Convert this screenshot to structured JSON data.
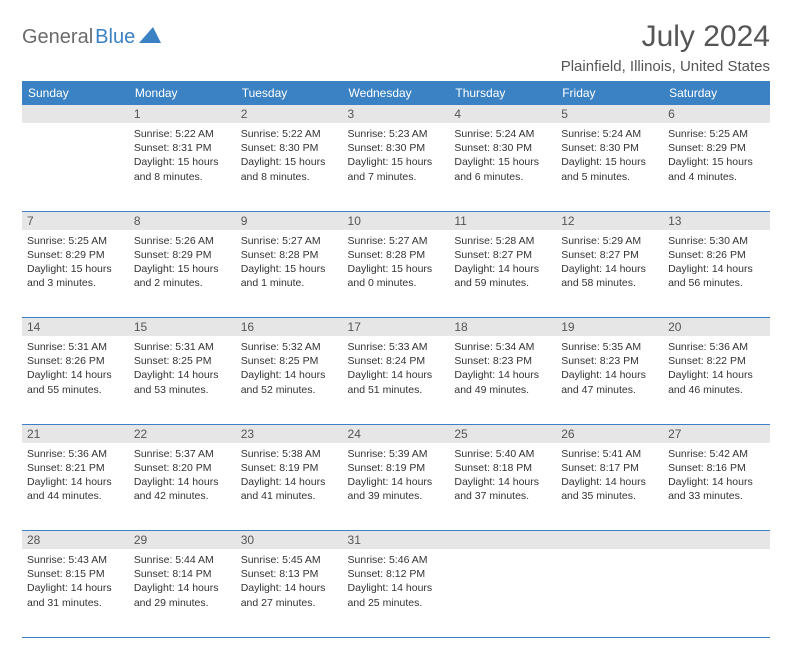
{
  "logo": {
    "part1": "General",
    "part2": "Blue"
  },
  "title": "July 2024",
  "location": "Plainfield, Illinois, United States",
  "colors": {
    "header_bg": "#3b82c4",
    "header_text": "#ffffff",
    "daynum_bg": "#e6e6e6",
    "border": "#3b82c4",
    "body_text": "#333333",
    "title_text": "#555555"
  },
  "weekdays": [
    "Sunday",
    "Monday",
    "Tuesday",
    "Wednesday",
    "Thursday",
    "Friday",
    "Saturday"
  ],
  "weeks": [
    {
      "nums": [
        "",
        "1",
        "2",
        "3",
        "4",
        "5",
        "6"
      ],
      "cells": [
        {
          "sunrise": "",
          "sunset": "",
          "daylight": ""
        },
        {
          "sunrise": "Sunrise: 5:22 AM",
          "sunset": "Sunset: 8:31 PM",
          "daylight": "Daylight: 15 hours and 8 minutes."
        },
        {
          "sunrise": "Sunrise: 5:22 AM",
          "sunset": "Sunset: 8:30 PM",
          "daylight": "Daylight: 15 hours and 8 minutes."
        },
        {
          "sunrise": "Sunrise: 5:23 AM",
          "sunset": "Sunset: 8:30 PM",
          "daylight": "Daylight: 15 hours and 7 minutes."
        },
        {
          "sunrise": "Sunrise: 5:24 AM",
          "sunset": "Sunset: 8:30 PM",
          "daylight": "Daylight: 15 hours and 6 minutes."
        },
        {
          "sunrise": "Sunrise: 5:24 AM",
          "sunset": "Sunset: 8:30 PM",
          "daylight": "Daylight: 15 hours and 5 minutes."
        },
        {
          "sunrise": "Sunrise: 5:25 AM",
          "sunset": "Sunset: 8:29 PM",
          "daylight": "Daylight: 15 hours and 4 minutes."
        }
      ]
    },
    {
      "nums": [
        "7",
        "8",
        "9",
        "10",
        "11",
        "12",
        "13"
      ],
      "cells": [
        {
          "sunrise": "Sunrise: 5:25 AM",
          "sunset": "Sunset: 8:29 PM",
          "daylight": "Daylight: 15 hours and 3 minutes."
        },
        {
          "sunrise": "Sunrise: 5:26 AM",
          "sunset": "Sunset: 8:29 PM",
          "daylight": "Daylight: 15 hours and 2 minutes."
        },
        {
          "sunrise": "Sunrise: 5:27 AM",
          "sunset": "Sunset: 8:28 PM",
          "daylight": "Daylight: 15 hours and 1 minute."
        },
        {
          "sunrise": "Sunrise: 5:27 AM",
          "sunset": "Sunset: 8:28 PM",
          "daylight": "Daylight: 15 hours and 0 minutes."
        },
        {
          "sunrise": "Sunrise: 5:28 AM",
          "sunset": "Sunset: 8:27 PM",
          "daylight": "Daylight: 14 hours and 59 minutes."
        },
        {
          "sunrise": "Sunrise: 5:29 AM",
          "sunset": "Sunset: 8:27 PM",
          "daylight": "Daylight: 14 hours and 58 minutes."
        },
        {
          "sunrise": "Sunrise: 5:30 AM",
          "sunset": "Sunset: 8:26 PM",
          "daylight": "Daylight: 14 hours and 56 minutes."
        }
      ]
    },
    {
      "nums": [
        "14",
        "15",
        "16",
        "17",
        "18",
        "19",
        "20"
      ],
      "cells": [
        {
          "sunrise": "Sunrise: 5:31 AM",
          "sunset": "Sunset: 8:26 PM",
          "daylight": "Daylight: 14 hours and 55 minutes."
        },
        {
          "sunrise": "Sunrise: 5:31 AM",
          "sunset": "Sunset: 8:25 PM",
          "daylight": "Daylight: 14 hours and 53 minutes."
        },
        {
          "sunrise": "Sunrise: 5:32 AM",
          "sunset": "Sunset: 8:25 PM",
          "daylight": "Daylight: 14 hours and 52 minutes."
        },
        {
          "sunrise": "Sunrise: 5:33 AM",
          "sunset": "Sunset: 8:24 PM",
          "daylight": "Daylight: 14 hours and 51 minutes."
        },
        {
          "sunrise": "Sunrise: 5:34 AM",
          "sunset": "Sunset: 8:23 PM",
          "daylight": "Daylight: 14 hours and 49 minutes."
        },
        {
          "sunrise": "Sunrise: 5:35 AM",
          "sunset": "Sunset: 8:23 PM",
          "daylight": "Daylight: 14 hours and 47 minutes."
        },
        {
          "sunrise": "Sunrise: 5:36 AM",
          "sunset": "Sunset: 8:22 PM",
          "daylight": "Daylight: 14 hours and 46 minutes."
        }
      ]
    },
    {
      "nums": [
        "21",
        "22",
        "23",
        "24",
        "25",
        "26",
        "27"
      ],
      "cells": [
        {
          "sunrise": "Sunrise: 5:36 AM",
          "sunset": "Sunset: 8:21 PM",
          "daylight": "Daylight: 14 hours and 44 minutes."
        },
        {
          "sunrise": "Sunrise: 5:37 AM",
          "sunset": "Sunset: 8:20 PM",
          "daylight": "Daylight: 14 hours and 42 minutes."
        },
        {
          "sunrise": "Sunrise: 5:38 AM",
          "sunset": "Sunset: 8:19 PM",
          "daylight": "Daylight: 14 hours and 41 minutes."
        },
        {
          "sunrise": "Sunrise: 5:39 AM",
          "sunset": "Sunset: 8:19 PM",
          "daylight": "Daylight: 14 hours and 39 minutes."
        },
        {
          "sunrise": "Sunrise: 5:40 AM",
          "sunset": "Sunset: 8:18 PM",
          "daylight": "Daylight: 14 hours and 37 minutes."
        },
        {
          "sunrise": "Sunrise: 5:41 AM",
          "sunset": "Sunset: 8:17 PM",
          "daylight": "Daylight: 14 hours and 35 minutes."
        },
        {
          "sunrise": "Sunrise: 5:42 AM",
          "sunset": "Sunset: 8:16 PM",
          "daylight": "Daylight: 14 hours and 33 minutes."
        }
      ]
    },
    {
      "nums": [
        "28",
        "29",
        "30",
        "31",
        "",
        "",
        ""
      ],
      "cells": [
        {
          "sunrise": "Sunrise: 5:43 AM",
          "sunset": "Sunset: 8:15 PM",
          "daylight": "Daylight: 14 hours and 31 minutes."
        },
        {
          "sunrise": "Sunrise: 5:44 AM",
          "sunset": "Sunset: 8:14 PM",
          "daylight": "Daylight: 14 hours and 29 minutes."
        },
        {
          "sunrise": "Sunrise: 5:45 AM",
          "sunset": "Sunset: 8:13 PM",
          "daylight": "Daylight: 14 hours and 27 minutes."
        },
        {
          "sunrise": "Sunrise: 5:46 AM",
          "sunset": "Sunset: 8:12 PM",
          "daylight": "Daylight: 14 hours and 25 minutes."
        },
        {
          "sunrise": "",
          "sunset": "",
          "daylight": ""
        },
        {
          "sunrise": "",
          "sunset": "",
          "daylight": ""
        },
        {
          "sunrise": "",
          "sunset": "",
          "daylight": ""
        }
      ]
    }
  ]
}
